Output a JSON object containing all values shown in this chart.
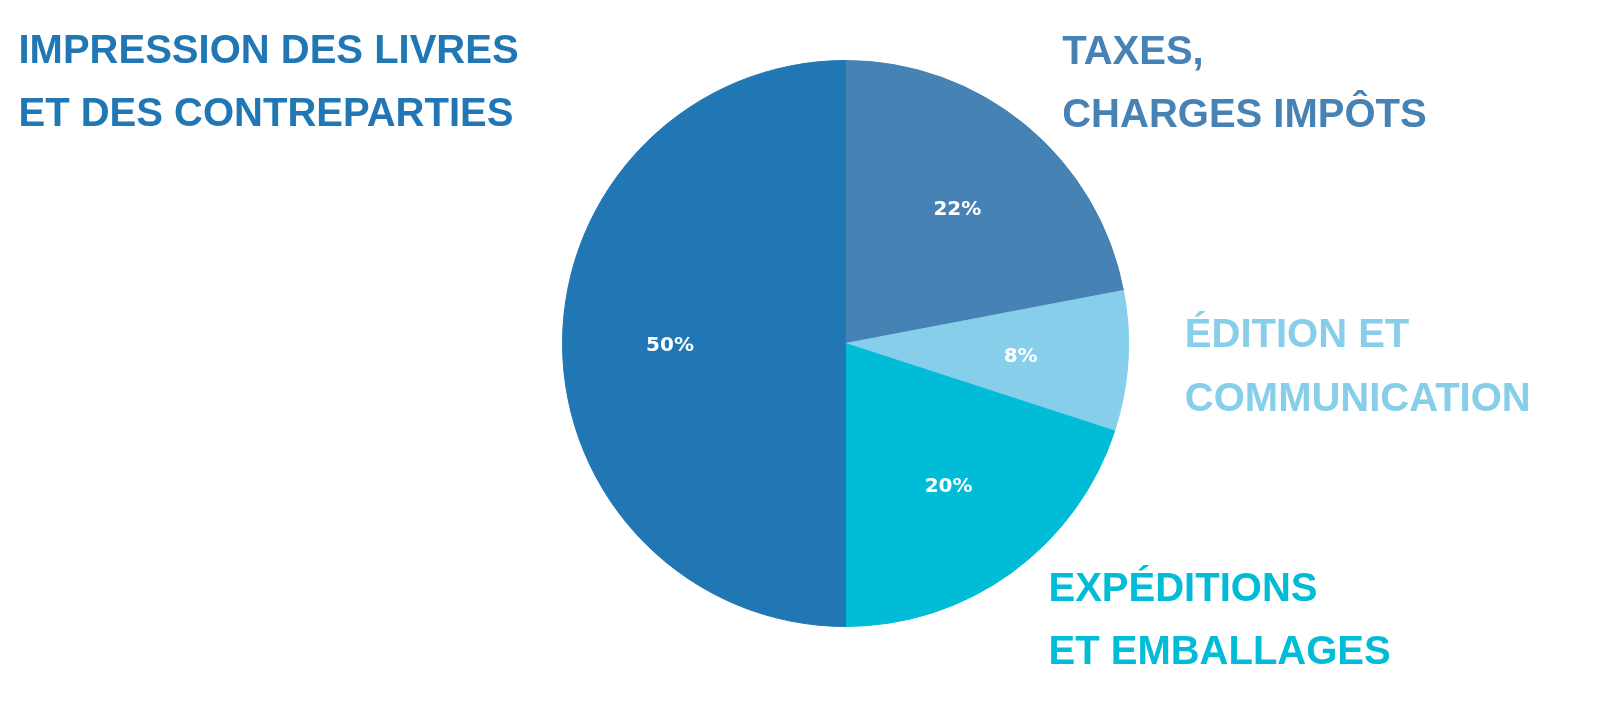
{
  "chart_data": {
    "type": "pie",
    "categories": [
      "TAXES, CHARGES IMPÔTS",
      "ÉDITION ET COMMUNICATION",
      "EXPÉDITIONS ET EMBALLAGES",
      "IMPRESSION DES LIVRES ET DES CONTREPARTIES"
    ],
    "values": [
      22,
      8,
      20,
      50
    ],
    "colors": [
      "#4682b4",
      "#87ceeb",
      "#00bcd6",
      "#2077b4"
    ],
    "value_labels": [
      "22%",
      "8%",
      "20%",
      "50%"
    ]
  }
}
